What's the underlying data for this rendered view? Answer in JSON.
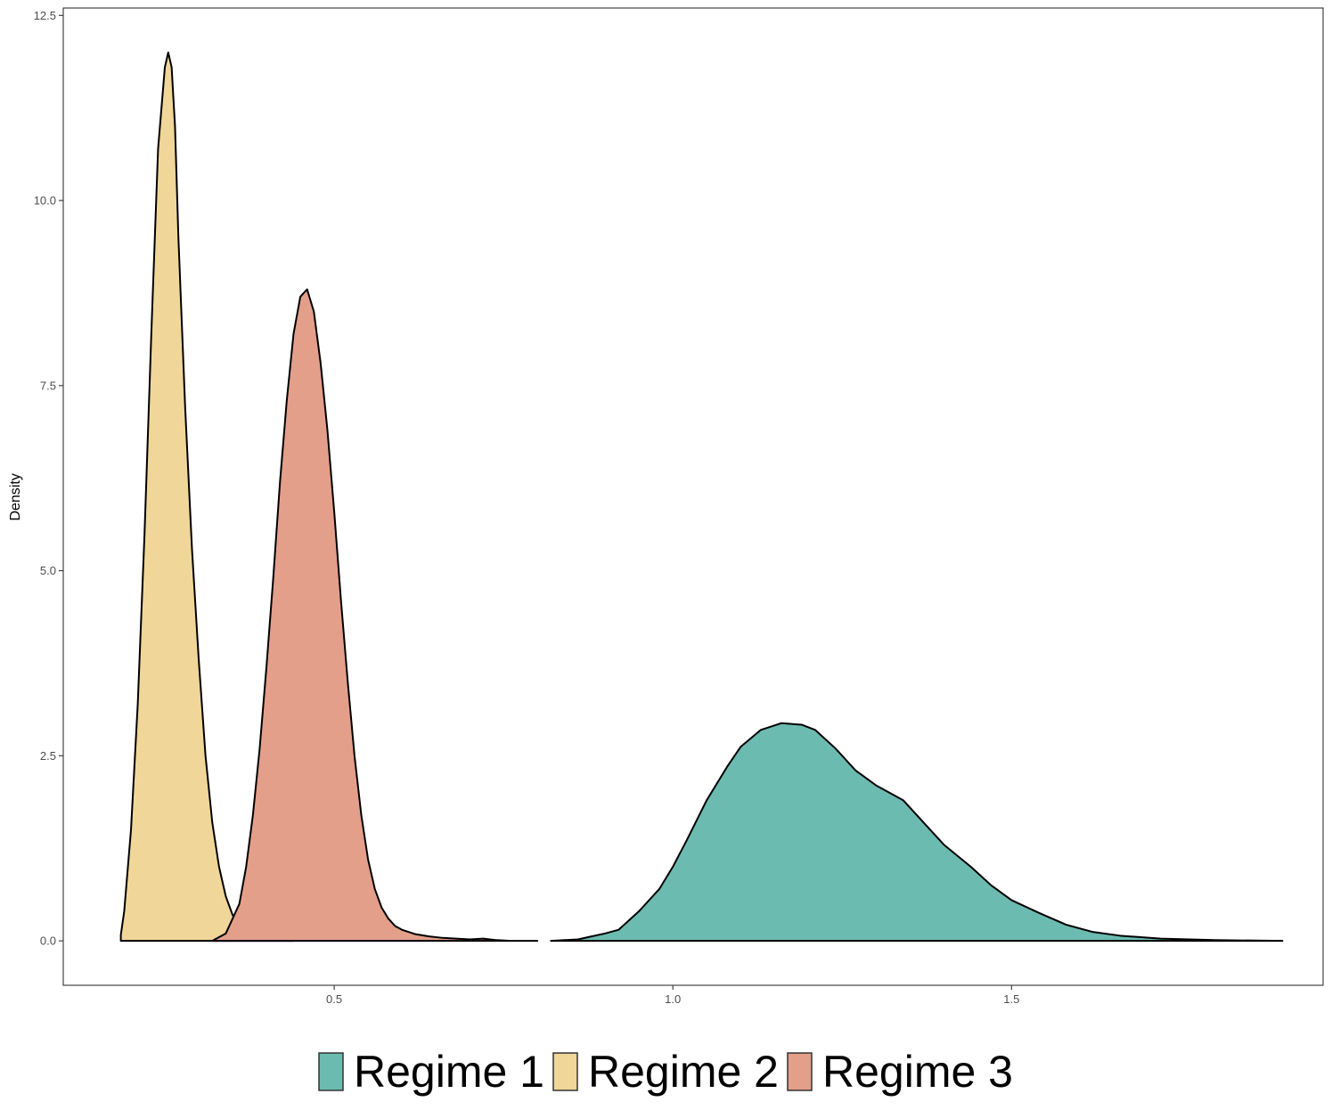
{
  "chart_data": {
    "type": "area",
    "subtype": "density",
    "title": "",
    "xlabel": "",
    "ylabel": "Density",
    "xlim": [
      0.1,
      1.96
    ],
    "ylim": [
      -0.6,
      12.6
    ],
    "x_ticks": [
      0.5,
      1.0,
      1.5
    ],
    "x_tick_labels": [
      "0.5",
      "1.0",
      "1.5"
    ],
    "y_ticks": [
      0,
      2.5,
      5,
      7.5,
      10,
      12.5
    ],
    "y_tick_labels": [
      "0.0",
      "2.5",
      "5.0",
      "7.5",
      "10.0",
      "12.5"
    ],
    "grid": false,
    "legend_position": "bottom",
    "series": [
      {
        "name": "Regime 1",
        "color": "#6cbbb1",
        "x": [
          0.82,
          0.86,
          0.88,
          0.9,
          0.92,
          0.95,
          0.98,
          1.0,
          1.02,
          1.05,
          1.08,
          1.1,
          1.13,
          1.16,
          1.19,
          1.21,
          1.24,
          1.27,
          1.3,
          1.34,
          1.37,
          1.4,
          1.44,
          1.47,
          1.5,
          1.54,
          1.58,
          1.62,
          1.66,
          1.72,
          1.8,
          1.9
        ],
        "y": [
          0.0,
          0.02,
          0.06,
          0.1,
          0.15,
          0.4,
          0.7,
          1.0,
          1.35,
          1.9,
          2.35,
          2.62,
          2.85,
          2.94,
          2.92,
          2.85,
          2.6,
          2.3,
          2.1,
          1.9,
          1.6,
          1.3,
          1.0,
          0.75,
          0.55,
          0.38,
          0.22,
          0.12,
          0.07,
          0.03,
          0.01,
          0.0
        ]
      },
      {
        "name": "Regime 2",
        "color": "#f0d698",
        "x": [
          0.185,
          0.19,
          0.2,
          0.21,
          0.22,
          0.23,
          0.24,
          0.25,
          0.255,
          0.26,
          0.265,
          0.27,
          0.28,
          0.29,
          0.3,
          0.31,
          0.32,
          0.33,
          0.34,
          0.35,
          0.36,
          0.37,
          0.38,
          0.39,
          0.4,
          0.41,
          0.42,
          0.43,
          0.44
        ],
        "y": [
          0.08,
          0.4,
          1.5,
          3.2,
          5.5,
          8.2,
          10.7,
          11.8,
          12.0,
          11.8,
          11.0,
          9.5,
          7.2,
          5.3,
          3.8,
          2.5,
          1.6,
          1.0,
          0.6,
          0.35,
          0.2,
          0.12,
          0.07,
          0.04,
          0.03,
          0.04,
          0.02,
          0.01,
          0.0
        ]
      },
      {
        "name": "Regime 3",
        "color": "#e39f8a",
        "x": [
          0.32,
          0.34,
          0.36,
          0.37,
          0.38,
          0.39,
          0.4,
          0.41,
          0.42,
          0.43,
          0.44,
          0.45,
          0.46,
          0.47,
          0.48,
          0.49,
          0.5,
          0.51,
          0.52,
          0.53,
          0.54,
          0.55,
          0.56,
          0.57,
          0.58,
          0.59,
          0.6,
          0.62,
          0.64,
          0.66,
          0.68,
          0.7,
          0.72,
          0.74,
          0.76,
          0.8
        ],
        "y": [
          0.0,
          0.1,
          0.5,
          1.0,
          1.7,
          2.6,
          3.7,
          4.9,
          6.2,
          7.3,
          8.2,
          8.7,
          8.8,
          8.5,
          7.8,
          6.9,
          5.8,
          4.6,
          3.5,
          2.5,
          1.7,
          1.1,
          0.7,
          0.45,
          0.3,
          0.2,
          0.15,
          0.09,
          0.06,
          0.04,
          0.03,
          0.02,
          0.03,
          0.01,
          0.0,
          0.0
        ]
      }
    ],
    "legend": [
      {
        "label": "Regime 1",
        "color": "#6cbbb1"
      },
      {
        "label": "Regime 2",
        "color": "#f0d698"
      },
      {
        "label": "Regime 3",
        "color": "#e39f8a"
      }
    ]
  }
}
